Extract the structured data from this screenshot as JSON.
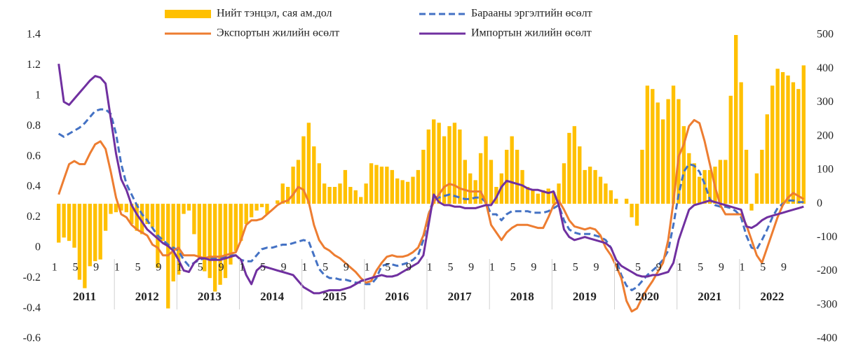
{
  "chart_data": {
    "type": "combo",
    "categories": [
      "1",
      null,
      null,
      null,
      "5",
      null,
      null,
      null,
      "9",
      null,
      null,
      null,
      "1",
      null,
      null,
      null,
      "5",
      null,
      null,
      null,
      "9",
      null,
      null,
      null,
      "1",
      null,
      null,
      null,
      "5",
      null,
      null,
      null,
      "9",
      null,
      null,
      null,
      "1",
      null,
      null,
      null,
      "5",
      null,
      null,
      null,
      "9",
      null,
      null,
      null,
      "1",
      null,
      null,
      null,
      "5",
      null,
      null,
      null,
      "9",
      null,
      null,
      null,
      "1",
      null,
      null,
      null,
      "5",
      null,
      null,
      null,
      "9",
      null,
      null,
      null,
      "1",
      null,
      null,
      null,
      "5",
      null,
      null,
      null,
      "9",
      null,
      null,
      null,
      "1",
      null,
      null,
      null,
      "5",
      null,
      null,
      null,
      "9",
      null,
      null,
      null,
      "1",
      null,
      null,
      null,
      "5",
      null,
      null,
      null,
      "9",
      null,
      null,
      null,
      "1",
      null,
      null,
      null,
      "5",
      null,
      null,
      null,
      "9",
      null,
      null,
      null,
      "1",
      null,
      null,
      null,
      "5",
      null,
      null,
      null,
      "9",
      null,
      null,
      null,
      "1",
      null,
      null,
      null,
      "5",
      null,
      null,
      null,
      "9",
      null,
      null,
      null
    ],
    "years": [
      "2011",
      "2012",
      "2013",
      "2014",
      "2015",
      "2016",
      "2017",
      "2018",
      "2019",
      "2020",
      "2021",
      "2022"
    ],
    "ylim": [
      -0.6,
      1.4
    ],
    "yticks": [
      1.4,
      1.2,
      1,
      0.8,
      0.6,
      0.4,
      0.2,
      0,
      -0.2,
      -0.4,
      -0.6
    ],
    "y2lim": [
      -400,
      500
    ],
    "y2ticks": [
      500,
      400,
      300,
      200,
      100,
      0,
      -100,
      -200,
      -300,
      -400
    ],
    "series": [
      {
        "name": "Нийт тэнцэл, сая ам.дол",
        "type": "bar",
        "axis": "y2",
        "color": "#FFC000",
        "values": [
          -115,
          -100,
          -110,
          -130,
          -225,
          -250,
          -185,
          -170,
          -165,
          -80,
          -30,
          -25,
          -20,
          -25,
          -60,
          -80,
          -90,
          -60,
          -70,
          -190,
          -110,
          -310,
          -230,
          -210,
          -30,
          -20,
          -90,
          -160,
          -200,
          -220,
          -260,
          -240,
          -220,
          -180,
          -140,
          -110,
          -60,
          -40,
          -20,
          -10,
          -30,
          0,
          10,
          60,
          50,
          110,
          130,
          200,
          240,
          170,
          120,
          60,
          50,
          50,
          60,
          100,
          50,
          40,
          20,
          60,
          120,
          115,
          110,
          110,
          100,
          75,
          70,
          65,
          80,
          100,
          160,
          220,
          250,
          240,
          200,
          230,
          240,
          220,
          130,
          90,
          70,
          150,
          200,
          130,
          50,
          90,
          160,
          200,
          160,
          100,
          50,
          40,
          30,
          40,
          45,
          35,
          60,
          120,
          210,
          230,
          170,
          100,
          110,
          100,
          80,
          60,
          40,
          15,
          0,
          15,
          -40,
          -65,
          160,
          350,
          340,
          300,
          250,
          310,
          350,
          310,
          230,
          150,
          120,
          80,
          100,
          100,
          110,
          130,
          130,
          320,
          500,
          360,
          160,
          -20,
          90,
          160,
          265,
          350,
          400,
          390,
          380,
          360,
          340,
          410
        ]
      },
      {
        "name": "Барааны эргэлтийн өсөлт",
        "type": "line",
        "dash": true,
        "color": "#4472C4",
        "values": [
          0.75,
          0.73,
          0.75,
          0.77,
          0.79,
          0.82,
          0.86,
          0.9,
          0.91,
          0.91,
          0.88,
          0.75,
          0.55,
          0.42,
          0.35,
          0.28,
          0.22,
          0.18,
          0.13,
          0.08,
          0.05,
          0.02,
          0.0,
          -0.02,
          -0.08,
          -0.12,
          -0.1,
          -0.08,
          -0.07,
          -0.07,
          -0.07,
          -0.07,
          -0.06,
          -0.05,
          -0.05,
          -0.08,
          -0.09,
          -0.09,
          -0.05,
          -0.01,
          0.0,
          0.0,
          0.01,
          0.02,
          0.02,
          0.03,
          0.04,
          0.05,
          0.04,
          -0.05,
          -0.14,
          -0.18,
          -0.2,
          -0.2,
          -0.21,
          -0.21,
          -0.22,
          -0.23,
          -0.23,
          -0.24,
          -0.24,
          -0.2,
          -0.12,
          -0.11,
          -0.11,
          -0.12,
          -0.11,
          -0.1,
          -0.08,
          -0.05,
          0.05,
          0.22,
          0.32,
          0.33,
          0.34,
          0.35,
          0.34,
          0.33,
          0.32,
          0.32,
          0.33,
          0.33,
          0.3,
          0.22,
          0.22,
          0.18,
          0.22,
          0.24,
          0.24,
          0.24,
          0.24,
          0.23,
          0.23,
          0.23,
          0.24,
          0.26,
          0.28,
          0.18,
          0.12,
          0.1,
          0.09,
          0.09,
          0.09,
          0.08,
          0.07,
          0.05,
          0.0,
          -0.08,
          -0.18,
          -0.25,
          -0.28,
          -0.26,
          -0.22,
          -0.18,
          -0.15,
          -0.12,
          -0.08,
          -0.02,
          0.15,
          0.35,
          0.5,
          0.55,
          0.54,
          0.5,
          0.42,
          0.32,
          0.28,
          0.27,
          0.27,
          0.26,
          0.24,
          0.2,
          0.08,
          0.0,
          -0.01,
          0.05,
          0.12,
          0.2,
          0.26,
          0.29,
          0.31,
          0.31,
          0.3,
          0.3
        ]
      },
      {
        "name": "Экспортын жилийн өсөлт",
        "type": "line",
        "color": "#ED7D31",
        "values": [
          0.35,
          0.45,
          0.55,
          0.57,
          0.55,
          0.55,
          0.62,
          0.68,
          0.7,
          0.65,
          0.5,
          0.33,
          0.22,
          0.2,
          0.15,
          0.12,
          0.1,
          0.08,
          0.02,
          0.0,
          -0.05,
          -0.05,
          -0.02,
          0.0,
          -0.05,
          -0.05,
          -0.05,
          -0.06,
          -0.07,
          -0.06,
          -0.06,
          -0.06,
          -0.05,
          -0.04,
          -0.03,
          0.05,
          0.15,
          0.18,
          0.18,
          0.19,
          0.22,
          0.25,
          0.28,
          0.3,
          0.31,
          0.35,
          0.4,
          0.38,
          0.3,
          0.15,
          0.05,
          0.0,
          -0.02,
          -0.05,
          -0.07,
          -0.1,
          -0.13,
          -0.16,
          -0.2,
          -0.23,
          -0.22,
          -0.15,
          -0.1,
          -0.06,
          -0.05,
          -0.06,
          -0.06,
          -0.05,
          -0.03,
          0.0,
          0.08,
          0.22,
          0.3,
          0.35,
          0.4,
          0.42,
          0.41,
          0.39,
          0.38,
          0.37,
          0.37,
          0.37,
          0.3,
          0.15,
          0.1,
          0.05,
          0.1,
          0.13,
          0.15,
          0.15,
          0.15,
          0.14,
          0.13,
          0.13,
          0.2,
          0.28,
          0.31,
          0.25,
          0.18,
          0.14,
          0.13,
          0.12,
          0.13,
          0.12,
          0.08,
          0.0,
          -0.05,
          -0.12,
          -0.2,
          -0.35,
          -0.42,
          -0.4,
          -0.33,
          -0.27,
          -0.22,
          -0.16,
          -0.1,
          0.05,
          0.3,
          0.6,
          0.68,
          0.8,
          0.84,
          0.82,
          0.7,
          0.55,
          0.4,
          0.28,
          0.22,
          0.22,
          0.22,
          0.22,
          0.15,
          0.05,
          -0.05,
          -0.1,
          0.0,
          0.1,
          0.2,
          0.28,
          0.33,
          0.36,
          0.34,
          0.32
        ]
      },
      {
        "name": "Импортын жилийн өсөлт",
        "type": "line",
        "color": "#7030A0",
        "values": [
          1.21,
          0.96,
          0.94,
          0.98,
          1.02,
          1.06,
          1.1,
          1.13,
          1.12,
          1.08,
          0.85,
          0.62,
          0.45,
          0.38,
          0.28,
          0.22,
          0.17,
          0.12,
          0.09,
          0.06,
          0.03,
          0.01,
          -0.02,
          -0.08,
          -0.15,
          -0.16,
          -0.1,
          -0.07,
          -0.07,
          -0.08,
          -0.08,
          -0.08,
          -0.07,
          -0.06,
          -0.05,
          -0.08,
          -0.18,
          -0.24,
          -0.15,
          -0.12,
          -0.13,
          -0.14,
          -0.15,
          -0.16,
          -0.17,
          -0.18,
          -0.22,
          -0.26,
          -0.28,
          -0.3,
          -0.3,
          -0.29,
          -0.28,
          -0.28,
          -0.28,
          -0.27,
          -0.26,
          -0.24,
          -0.22,
          -0.21,
          -0.2,
          -0.19,
          -0.18,
          -0.19,
          -0.19,
          -0.18,
          -0.16,
          -0.14,
          -0.12,
          -0.1,
          -0.05,
          0.15,
          0.35,
          0.3,
          0.28,
          0.28,
          0.27,
          0.27,
          0.26,
          0.26,
          0.26,
          0.27,
          0.28,
          0.28,
          0.33,
          0.4,
          0.44,
          0.43,
          0.42,
          0.41,
          0.39,
          0.38,
          0.38,
          0.37,
          0.36,
          0.37,
          0.28,
          0.12,
          0.07,
          0.05,
          0.06,
          0.07,
          0.06,
          0.05,
          0.04,
          0.03,
          0.0,
          -0.08,
          -0.12,
          -0.14,
          -0.16,
          -0.18,
          -0.19,
          -0.19,
          -0.18,
          -0.18,
          -0.17,
          -0.16,
          -0.1,
          0.05,
          0.15,
          0.25,
          0.28,
          0.29,
          0.3,
          0.31,
          0.3,
          0.29,
          0.28,
          0.27,
          0.26,
          0.25,
          0.14,
          0.13,
          0.15,
          0.18,
          0.2,
          0.21,
          0.22,
          0.23,
          0.24,
          0.25,
          0.26,
          0.27
        ]
      }
    ]
  }
}
